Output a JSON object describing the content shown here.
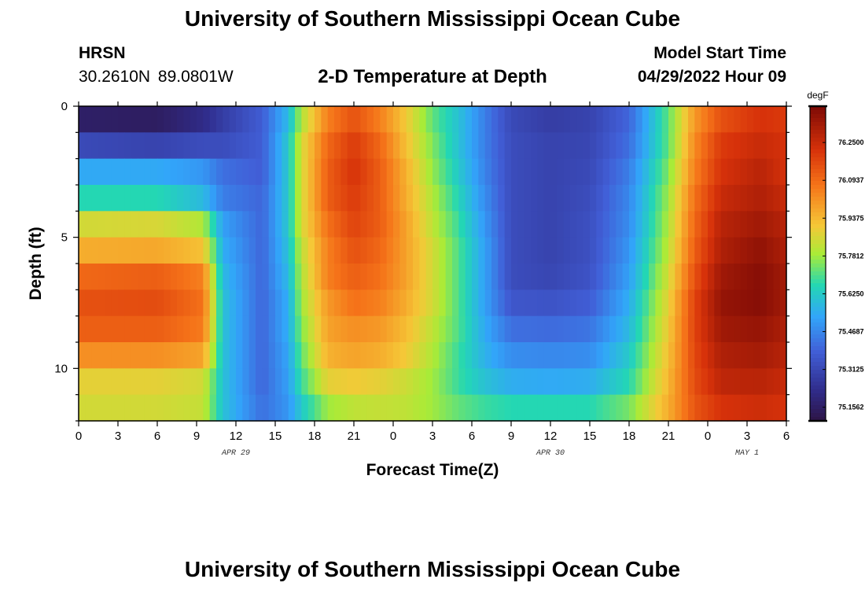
{
  "header": {
    "title": "University of Southern Mississippi Ocean Cube",
    "station": "HRSN",
    "coordinates": "30.2610N  89.0801W",
    "subtitle": "2-D Temperature at Depth",
    "model_start_label": "Model Start Time",
    "model_start_value": "04/29/2022 Hour 09"
  },
  "footer": {
    "title": "University of Southern Mississippi Ocean Cube"
  },
  "chart_data": {
    "type": "heatmap",
    "title": "2-D Temperature at Depth",
    "xlabel": "Forecast Time(Z)",
    "ylabel": "Depth (ft)",
    "x_range_hours": [
      0,
      54
    ],
    "y_range_ft": [
      0,
      12
    ],
    "x_tick_hours": [
      0,
      3,
      6,
      9,
      12,
      15,
      18,
      21,
      24,
      27,
      30,
      33,
      36,
      39,
      42,
      45,
      48,
      51,
      54
    ],
    "x_tick_labels": [
      "0",
      "3",
      "6",
      "9",
      "12",
      "15",
      "18",
      "21",
      "0",
      "3",
      "6",
      "9",
      "12",
      "15",
      "18",
      "21",
      "0",
      "3",
      "6"
    ],
    "y_tick_values": [
      0,
      5,
      10
    ],
    "y_tick_labels": [
      "0",
      "5",
      "10"
    ],
    "date_labels": [
      {
        "text": "APR 29",
        "hour": 12
      },
      {
        "text": "APR 30",
        "hour": 36
      },
      {
        "text": "MAY 1",
        "hour": 51
      }
    ],
    "colorbar": {
      "unit": "degF",
      "range": [
        75.1,
        76.4
      ],
      "tick_labels": [
        "76.2500",
        "76.0937",
        "75.9375",
        "75.7812",
        "75.6250",
        "75.4687",
        "75.3125",
        "75.1562"
      ],
      "tick_values": [
        76.25,
        76.0937,
        75.9375,
        75.7812,
        75.625,
        75.4687,
        75.3125,
        75.1562
      ]
    },
    "depth_layers_ft": [
      0.5,
      1.5,
      2.5,
      3.5,
      4.5,
      5.5,
      6.5,
      7.5,
      8.5,
      9.5,
      10.5,
      11.5
    ],
    "time_keyframes_hours": [
      0,
      6,
      9.5,
      11,
      14,
      16,
      17,
      19,
      21,
      23,
      25,
      27,
      29,
      31,
      33,
      36,
      39,
      42,
      45,
      47,
      49,
      52,
      54
    ],
    "temperature_degF_by_depth": [
      [
        75.16,
        75.15,
        75.22,
        75.28,
        75.38,
        75.58,
        75.8,
        76.05,
        76.15,
        76.05,
        75.9,
        75.72,
        75.6,
        75.45,
        75.32,
        75.28,
        75.3,
        75.4,
        75.72,
        76.0,
        76.15,
        76.22,
        76.2
      ],
      [
        75.32,
        75.3,
        75.33,
        75.33,
        75.38,
        75.62,
        75.85,
        76.1,
        76.2,
        76.1,
        75.92,
        75.75,
        75.6,
        75.45,
        75.33,
        75.3,
        75.31,
        75.42,
        75.72,
        76.03,
        76.2,
        76.25,
        76.22
      ],
      [
        75.54,
        75.54,
        75.5,
        75.42,
        75.38,
        75.62,
        75.85,
        76.12,
        76.22,
        76.12,
        75.95,
        75.77,
        75.62,
        75.46,
        75.33,
        75.3,
        75.32,
        75.45,
        75.75,
        76.05,
        76.22,
        76.28,
        76.22
      ],
      [
        75.66,
        75.66,
        75.58,
        75.45,
        75.4,
        75.62,
        75.85,
        76.12,
        76.2,
        76.12,
        75.96,
        75.8,
        75.65,
        75.48,
        75.33,
        75.3,
        75.33,
        75.47,
        75.78,
        76.08,
        76.25,
        76.3,
        76.25
      ],
      [
        75.85,
        75.86,
        75.8,
        75.52,
        75.4,
        75.62,
        75.85,
        76.08,
        76.18,
        76.12,
        75.98,
        75.82,
        75.68,
        75.5,
        75.33,
        75.3,
        75.34,
        75.48,
        75.8,
        76.1,
        76.28,
        76.33,
        76.28
      ],
      [
        75.96,
        75.97,
        75.92,
        75.55,
        75.4,
        75.6,
        75.82,
        76.05,
        76.15,
        76.1,
        75.98,
        75.85,
        75.7,
        75.52,
        75.33,
        75.3,
        75.34,
        75.5,
        75.82,
        76.12,
        76.3,
        76.36,
        76.3
      ],
      [
        76.1,
        76.12,
        76.05,
        75.58,
        75.4,
        75.58,
        75.8,
        76.05,
        76.12,
        76.08,
        75.98,
        75.85,
        75.7,
        75.52,
        75.33,
        75.31,
        75.35,
        75.52,
        75.85,
        76.15,
        76.33,
        76.38,
        76.32
      ],
      [
        76.15,
        76.16,
        76.08,
        75.6,
        75.4,
        75.55,
        75.78,
        76.0,
        76.08,
        76.05,
        75.96,
        75.85,
        75.7,
        75.52,
        75.36,
        75.35,
        75.38,
        75.55,
        75.88,
        76.18,
        76.35,
        76.38,
        76.32
      ],
      [
        76.12,
        76.12,
        76.06,
        75.6,
        75.4,
        75.55,
        75.75,
        75.98,
        76.02,
        76.0,
        75.93,
        75.82,
        75.7,
        75.54,
        75.42,
        75.41,
        75.43,
        75.58,
        75.9,
        76.18,
        76.33,
        76.35,
        76.3
      ],
      [
        76.02,
        76.02,
        75.98,
        75.6,
        75.4,
        75.53,
        75.72,
        75.95,
        75.98,
        75.96,
        75.9,
        75.8,
        75.68,
        75.56,
        75.48,
        75.47,
        75.48,
        75.62,
        75.92,
        76.17,
        76.3,
        76.32,
        76.28
      ],
      [
        75.88,
        75.88,
        75.85,
        75.6,
        75.4,
        75.52,
        75.68,
        75.88,
        75.9,
        75.88,
        75.84,
        75.78,
        75.68,
        75.6,
        75.55,
        75.54,
        75.55,
        75.66,
        75.94,
        76.16,
        76.27,
        76.28,
        76.25
      ],
      [
        75.85,
        75.85,
        75.83,
        75.6,
        75.42,
        75.5,
        75.62,
        75.78,
        75.82,
        75.83,
        75.82,
        75.78,
        75.72,
        75.68,
        75.66,
        75.66,
        75.66,
        75.74,
        75.96,
        76.14,
        76.22,
        76.24,
        76.22
      ]
    ]
  }
}
